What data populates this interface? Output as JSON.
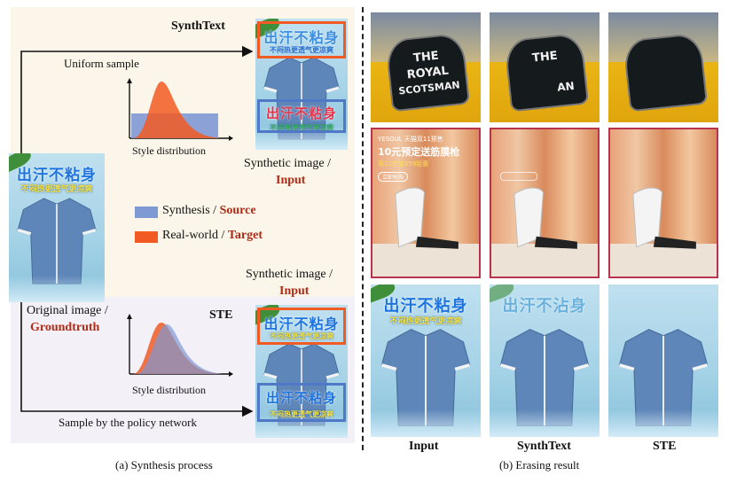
{
  "synthesis": {
    "synthtext_label": "SynthText",
    "uniform_sample_label": "Uniform sample",
    "style_distribution_label_top": "Style distribution",
    "synthetic_image_label_top": "Synthetic image /",
    "input_label_top": "Input",
    "legend": {
      "synthesis_label": "Synthesis /",
      "source_label": "Source",
      "realworld_label": "Real-world /",
      "target_label": "Target",
      "synthesis_color": "#7f99d4",
      "realworld_color": "#f15a22"
    },
    "synthetic_image_label_bottom": "Synthetic image /",
    "input_label_bottom": "Input",
    "original_image_label": "Original image /",
    "groundtruth_label": "Groundtruth",
    "ste_label": "STE",
    "style_distribution_label_bottom": "Style distribution",
    "policy_label": "Sample by the policy network",
    "caption": "(a)  Synthesis process",
    "shirt_text_main": "出汗不粘身",
    "shirt_text_sub": "不闷热更透气更凉爽",
    "synthtext_text_main": "出汗不粘身",
    "synthtext_text_sub": "不闷热更透气更凉爽"
  },
  "erasing": {
    "caption": "(b)  Erasing result",
    "col_labels": [
      "Input",
      "SynthText",
      "STE"
    ],
    "sign_line1": "THE",
    "sign_line2": "ROYAL",
    "sign_line3": "SCOTSMAN",
    "sign_synth_line1": "THE",
    "sign_synth_line2": "AN",
    "ad_brand": "YESOUL 天猫双11预售",
    "ad_title": "10元预定送筋膜枪",
    "ad_sub": "双11抢宝359钜惠",
    "ad_button": "立即抢购",
    "shirt_text_main": "出汗不粘身",
    "shirt_text_sub": "不闷热更透气更凉爽",
    "synthtext_shirt_main": "出汗不沾身"
  }
}
